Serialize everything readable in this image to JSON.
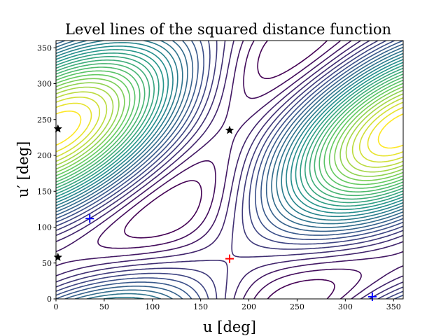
{
  "chart_data": {
    "type": "contour",
    "title": "Level lines of the squared distance function",
    "xlabel": "u [deg]",
    "ylabel": "u′ [deg]",
    "xlim": [
      0,
      360
    ],
    "ylim": [
      0,
      360
    ],
    "xticks": [
      0,
      50,
      100,
      150,
      200,
      250,
      300,
      350
    ],
    "yticks": [
      0,
      50,
      100,
      150,
      200,
      250,
      300,
      350
    ],
    "grid": false,
    "colormap": "viridis",
    "colormap_stops": [
      "#440154",
      "#3b528b",
      "#21918c",
      "#5ec962",
      "#fde725"
    ],
    "contour_level_count": 30,
    "markers": [
      {
        "kind": "maximum",
        "symbol": "+",
        "color": "#ff0000",
        "points": [
          [
            180,
            56
          ]
        ]
      },
      {
        "kind": "minimum",
        "symbol": "+",
        "color": "#0000ff",
        "points": [
          [
            35,
            112
          ],
          [
            328,
            3
          ]
        ]
      },
      {
        "kind": "saddle",
        "symbol": "star",
        "color": "#000000",
        "points": [
          [
            2,
            58
          ],
          [
            180,
            235
          ],
          [
            2,
            237
          ]
        ]
      }
    ]
  }
}
